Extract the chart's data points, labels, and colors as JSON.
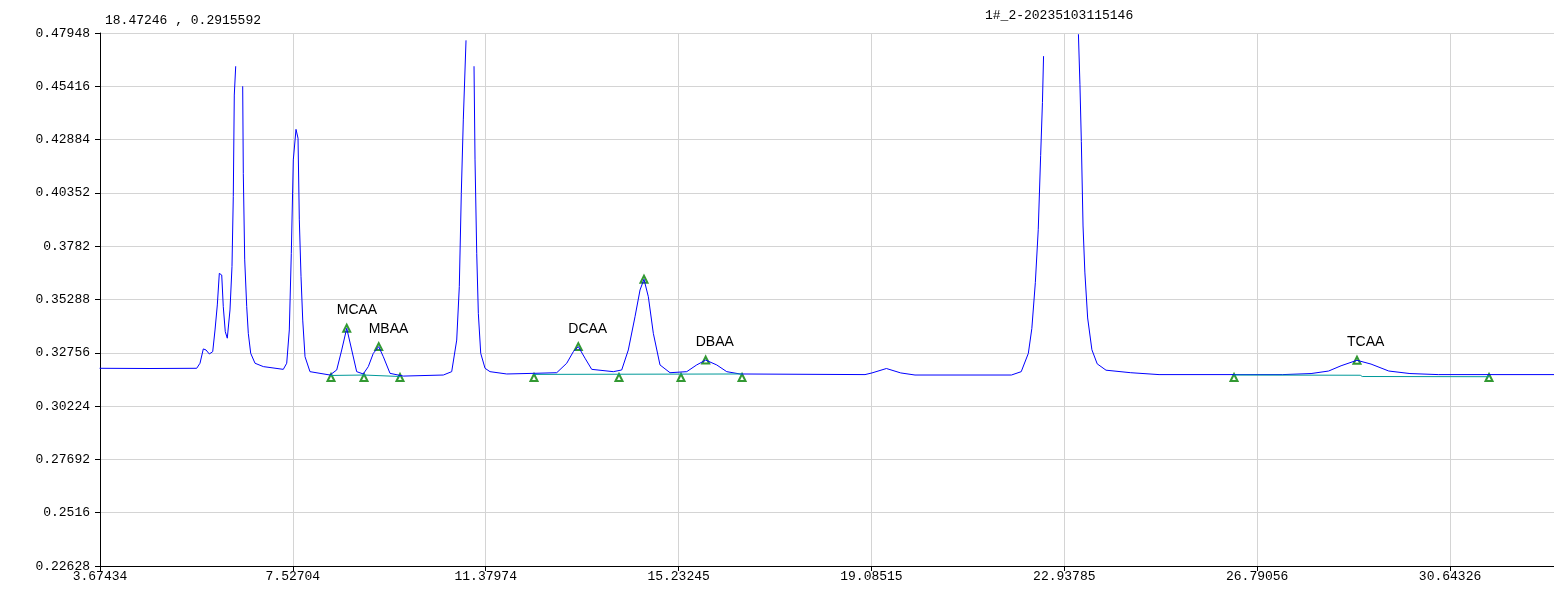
{
  "chart_data": {
    "type": "line",
    "title": "1#_2-20235103115146",
    "annotations": [
      "18.47246 , 0.2915592",
      {
        "text": "MCAA",
        "x": 8.603,
        "y": 0.3392
      },
      {
        "text": "MBAA",
        "x": 9.242,
        "y": 0.3305
      },
      {
        "text": "DCAA",
        "x": 13.229,
        "y": 0.3305
      },
      {
        "text": "DBAA",
        "x": 15.774,
        "y": 0.3241
      },
      {
        "text": "TCAA",
        "x": 28.784,
        "y": 0.324
      }
    ],
    "xlim": [
      3.67434,
      32.72
    ],
    "xticks": [
      3.67434,
      7.52704,
      11.37974,
      15.23245,
      19.08515,
      22.93785,
      26.79056,
      30.64326
    ],
    "ylim": [
      0.22628,
      0.47948
    ],
    "yticks": [
      0.22628,
      0.2516,
      0.27692,
      0.30224,
      0.32756,
      0.35288,
      0.3782,
      0.40352,
      0.42884,
      0.45416,
      0.47948
    ],
    "grid": true,
    "series": [
      {
        "type": "line",
        "color": "#0000ff",
        "marker": "none",
        "x": [
          3.675,
          4.673,
          5.606,
          5.672,
          5.738,
          5.792,
          5.858,
          5.926,
          5.972,
          6.018,
          6.058,
          6.106,
          6.137,
          6.177,
          6.217,
          6.271,
          6.311,
          6.337,
          6.357,
          6.385,
          6.45,
          6.525,
          6.537,
          6.565,
          6.605,
          6.637,
          6.685,
          6.771,
          6.937,
          7.336,
          7.404,
          7.456,
          7.496,
          7.536,
          7.59,
          7.63,
          7.656,
          7.69,
          7.724,
          7.77,
          7.869,
          8.269,
          8.403,
          8.503,
          8.603,
          8.703,
          8.802,
          8.934,
          9.034,
          9.134,
          9.242,
          9.334,
          9.468,
          9.733,
          10.533,
          10.7,
          10.8,
          10.852,
          10.892,
          10.932,
          10.986,
          11.06,
          11.146,
          11.166,
          11.2,
          11.232,
          11.28,
          11.366,
          11.465,
          11.799,
          12.331,
          12.798,
          12.998,
          13.13,
          13.229,
          13.363,
          13.497,
          13.929,
          14.096,
          14.228,
          14.362,
          14.462,
          14.541,
          14.628,
          14.728,
          14.861,
          15.061,
          15.395,
          15.594,
          15.774,
          15.994,
          16.194,
          16.459,
          18.956,
          19.096,
          19.384,
          19.67,
          19.955,
          21.881,
          22.077,
          22.219,
          22.289,
          22.359,
          22.417,
          22.465,
          22.501,
          22.523,
          22.87,
          23.22,
          23.25,
          23.278,
          23.312,
          23.348,
          23.404,
          23.489,
          23.595,
          23.771,
          24.265,
          24.83,
          27.301,
          27.867,
          28.218,
          28.466,
          28.784,
          29.065,
          29.419,
          29.842,
          30.408,
          32.72
        ],
        "values": [
          0.3202,
          0.3201,
          0.3202,
          0.3226,
          0.3294,
          0.3289,
          0.327,
          0.3281,
          0.3384,
          0.3503,
          0.3653,
          0.3645,
          0.3495,
          0.3376,
          0.3345,
          0.3479,
          0.3685,
          0.4017,
          0.45,
          0.4635,
          null,
          0.454,
          0.4128,
          0.3717,
          0.3495,
          0.3368,
          0.3273,
          0.3226,
          0.321,
          0.3197,
          0.3226,
          0.3384,
          0.3748,
          0.4192,
          0.4337,
          0.4295,
          0.3907,
          0.3637,
          0.3431,
          0.3257,
          0.3186,
          0.317,
          0.3194,
          0.3289,
          0.3392,
          0.3289,
          0.3186,
          0.3175,
          0.321,
          0.3273,
          0.3305,
          0.3257,
          0.3178,
          0.3165,
          0.317,
          0.3186,
          0.3336,
          0.359,
          0.4033,
          0.4382,
          0.4758,
          null,
          0.4635,
          0.4192,
          0.3748,
          0.3463,
          0.3273,
          0.3202,
          0.3186,
          0.3175,
          0.3178,
          0.3181,
          0.3226,
          0.3281,
          0.3305,
          0.325,
          0.3197,
          0.3186,
          0.3194,
          0.3289,
          0.3447,
          0.3574,
          0.3625,
          0.3542,
          0.3368,
          0.3218,
          0.3181,
          0.3186,
          0.3218,
          0.3241,
          0.3218,
          0.3186,
          0.3175,
          0.3172,
          0.318,
          0.3201,
          0.318,
          0.317,
          0.317,
          0.3186,
          0.3273,
          0.3391,
          0.3609,
          0.386,
          0.4213,
          0.4465,
          0.4683,
          null,
          0.4787,
          0.4549,
          0.428,
          0.3878,
          0.3659,
          0.3441,
          0.329,
          0.3223,
          0.3193,
          0.3181,
          0.3172,
          0.3172,
          0.3177,
          0.3189,
          0.3214,
          0.324,
          0.3222,
          0.3189,
          0.3177,
          0.3172,
          0.3172
        ]
      },
      {
        "type": "line",
        "color": "#009999",
        "marker": "none",
        "x": [
          8.289,
          8.948,
          9.667,
          9.7,
          12.344,
          16.5,
          16.6,
          26.328,
          28.85,
          28.89,
          31.422
        ],
        "values": [
          0.3168,
          0.317,
          0.3163,
          null,
          0.3173,
          0.3175,
          null,
          0.317,
          0.3169,
          0.3163,
          0.3162
        ]
      },
      {
        "type": "scatter",
        "color": "#008000",
        "marker": "triangle",
        "x": [
          8.603,
          9.242,
          13.229,
          14.541,
          15.774,
          28.784
        ],
        "values": [
          0.3392,
          0.3305,
          0.3305,
          0.3625,
          0.3241,
          0.324
        ]
      },
      {
        "type": "scatter",
        "color": "#008000",
        "marker": "triangle",
        "x": [
          8.289,
          8.948,
          9.667,
          12.344,
          14.042,
          15.281,
          16.5,
          26.328,
          31.422
        ],
        "values": [
          0.3158,
          0.3158,
          0.3158,
          0.3158,
          0.3158,
          0.3158,
          0.3158,
          0.3158,
          0.3158
        ]
      }
    ]
  }
}
